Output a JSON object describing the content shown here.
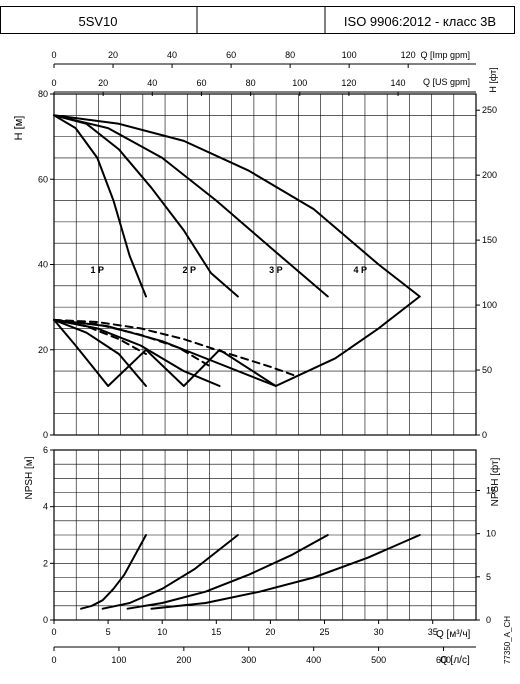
{
  "header": {
    "model": "5SV10",
    "standard": "ISO 9906:2012 - класс 3В"
  },
  "chart_data": [
    {
      "type": "line",
      "panel": "head",
      "ylabel": "H [м]",
      "y2label": "H [фт]",
      "ylim": [
        0,
        80
      ],
      "y_ticks": [
        0,
        20,
        40,
        60,
        80
      ],
      "y2lim": [
        0,
        262.47
      ],
      "y2_ticks": [
        0,
        50,
        100,
        150,
        200,
        250
      ],
      "top_axes": [
        {
          "label": "Q [Imp gpm]",
          "ticks": [
            0,
            20,
            40,
            60,
            80,
            100,
            120
          ],
          "per_m3h": 3.666
        },
        {
          "label": "Q [US gpm]",
          "ticks": [
            0,
            20,
            40,
            60,
            80,
            100,
            120,
            140
          ],
          "per_m3h": 4.403
        }
      ],
      "xlim": [
        0,
        39
      ],
      "grid": true,
      "series": [
        {
          "name": "1 P",
          "x": [
            0,
            2,
            4,
            5.5,
            7,
            8.5
          ],
          "y": [
            75,
            72,
            65,
            55,
            42,
            32.5
          ],
          "style": "solid"
        },
        {
          "name": "2 P",
          "x": [
            0,
            3,
            6,
            9,
            12,
            14.5,
            17
          ],
          "y": [
            75,
            73,
            67,
            58,
            48,
            38,
            32.5
          ],
          "style": "solid"
        },
        {
          "name": "3 P",
          "x": [
            0,
            5,
            10,
            15,
            20,
            25.3
          ],
          "y": [
            75,
            72,
            65,
            55,
            44,
            32.5
          ],
          "style": "solid"
        },
        {
          "name": "4 P",
          "x": [
            0,
            6,
            12,
            18,
            24,
            30,
            33.8
          ],
          "y": [
            75,
            73,
            69,
            62,
            53,
            40,
            32.5
          ],
          "style": "solid"
        },
        {
          "name": "",
          "x": [
            0,
            2,
            5,
            8.5,
            12,
            15.3,
            20.5,
            26,
            30,
            33.8
          ],
          "y": [
            27,
            21,
            11.5,
            20,
            11.5,
            20,
            11.5,
            18,
            25,
            32.5
          ],
          "style": "solid"
        },
        {
          "name": "",
          "x": [
            0,
            3,
            6,
            8.5
          ],
          "y": [
            27,
            24,
            19,
            11.5
          ],
          "style": "solid"
        },
        {
          "name": "",
          "x": [
            0,
            4,
            8,
            12,
            15.3
          ],
          "y": [
            27,
            25,
            21,
            15,
            11.5
          ],
          "style": "solid"
        },
        {
          "name": "",
          "x": [
            0,
            5,
            10,
            15,
            20.5
          ],
          "y": [
            27,
            25.5,
            22,
            17,
            11.5
          ],
          "style": "solid"
        },
        {
          "name": "",
          "x": [
            0,
            4,
            8,
            12,
            15,
            17.5,
            20,
            22.2
          ],
          "y": [
            27,
            26.5,
            25,
            22.5,
            20,
            18,
            16,
            14
          ],
          "style": "dashed"
        },
        {
          "name": "",
          "x": [
            0,
            4,
            8,
            11.5,
            14.5
          ],
          "y": [
            27,
            26,
            23.5,
            20.5,
            16
          ],
          "style": "dashed"
        },
        {
          "name": "",
          "x": [
            0,
            3,
            6,
            8.5
          ],
          "y": [
            27,
            25.5,
            22.5,
            19
          ],
          "style": "dashed"
        }
      ],
      "labels": [
        {
          "text": "1 P",
          "x": 4,
          "y": 38
        },
        {
          "text": "2 P",
          "x": 12.5,
          "y": 38
        },
        {
          "text": "3 P",
          "x": 20.5,
          "y": 38
        },
        {
          "text": "4 P",
          "x": 28.3,
          "y": 38
        }
      ]
    },
    {
      "type": "line",
      "panel": "npsh",
      "ylabel": "NPSH [м]",
      "y2label": "NPSH [фт]",
      "ylim": [
        0,
        6
      ],
      "y_ticks": [
        0,
        2,
        4,
        6
      ],
      "y2lim": [
        0,
        19.69
      ],
      "y2_ticks": [
        0,
        5,
        10,
        15
      ],
      "xlabel": "Q [м³/ч]",
      "xlim": [
        0,
        39
      ],
      "x_ticks": [
        0,
        5,
        10,
        15,
        20,
        25,
        30,
        35
      ],
      "bottom_axis": {
        "label": "Q [л/с]",
        "ticks": [
          0,
          100,
          200,
          300,
          400,
          500,
          600
        ],
        "per_m3h": 16.667
      },
      "grid": true,
      "series": [
        {
          "name": "",
          "x": [
            2.5,
            3.5,
            4.5,
            5.5,
            6.5,
            7.5,
            8.5
          ],
          "y": [
            0.4,
            0.5,
            0.7,
            1.1,
            1.6,
            2.3,
            3.0
          ],
          "style": "solid"
        },
        {
          "name": "",
          "x": [
            4.5,
            7,
            10,
            13,
            15,
            17
          ],
          "y": [
            0.4,
            0.6,
            1.1,
            1.8,
            2.4,
            3.0
          ],
          "style": "solid"
        },
        {
          "name": "",
          "x": [
            6.8,
            10,
            14,
            18,
            22,
            25.3
          ],
          "y": [
            0.4,
            0.6,
            1.0,
            1.6,
            2.3,
            3.0
          ],
          "style": "solid"
        },
        {
          "name": "",
          "x": [
            9,
            14,
            19,
            24,
            29,
            33.8
          ],
          "y": [
            0.4,
            0.6,
            1.0,
            1.5,
            2.2,
            3.0
          ],
          "style": "solid"
        }
      ]
    }
  ],
  "footer": {
    "code": "77350_A_CH"
  }
}
